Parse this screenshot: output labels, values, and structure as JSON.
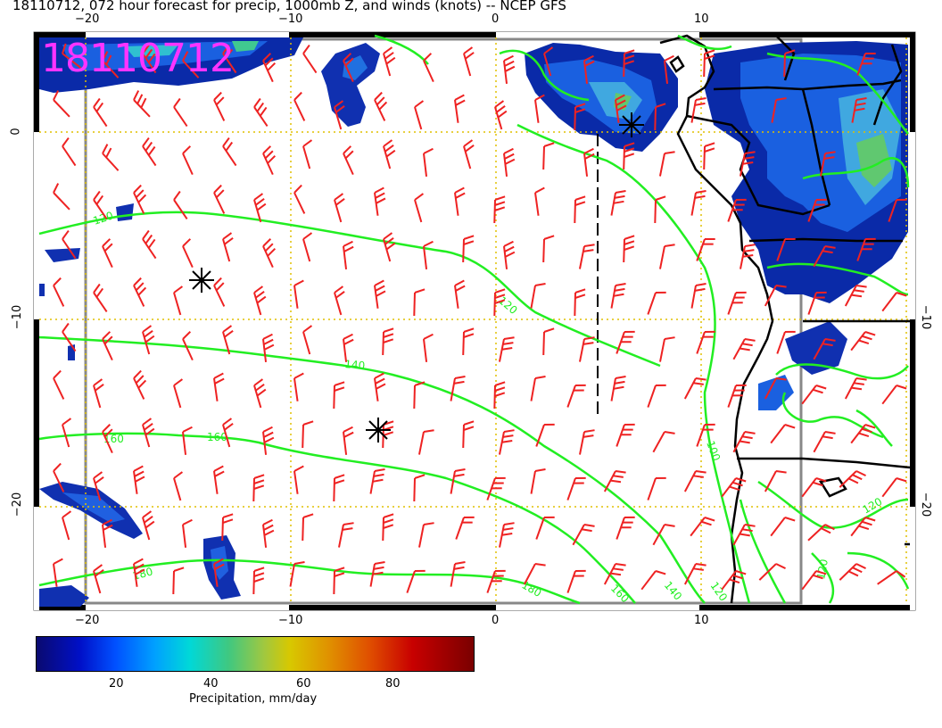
{
  "header": {
    "title": "18110712, 072 hour forecast for precip, 1000mb Z, and winds (knots) -- NCEP GFS"
  },
  "map": {
    "date_stamp": "18110712"
  },
  "axes": {
    "top_ticks": [
      "−20",
      "−10",
      "0",
      "10"
    ],
    "bottom_ticks": [
      "−20",
      "−10",
      "0",
      "10"
    ],
    "left_ticks": [
      "0",
      "−10",
      "−20"
    ],
    "right_ticks": [
      "−10",
      "−20"
    ]
  },
  "contours": {
    "color": "#22ee22",
    "labels": [
      "120",
      "120",
      "140",
      "160",
      "160",
      "180",
      "180",
      "160",
      "140",
      "120",
      "100",
      "120",
      "120"
    ]
  },
  "wind_color": "#ee2222",
  "colorbar": {
    "title": "Precipitation, mm/day",
    "ticks": [
      "20",
      "40",
      "60",
      "80"
    ]
  }
}
